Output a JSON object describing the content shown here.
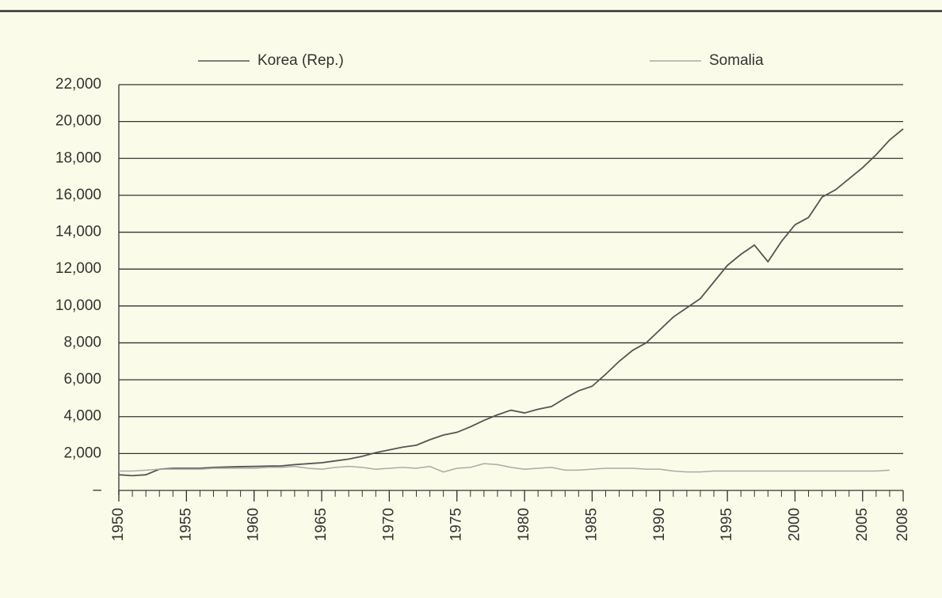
{
  "chart_data": {
    "type": "line",
    "x": [
      1950,
      1951,
      1952,
      1953,
      1954,
      1955,
      1956,
      1957,
      1958,
      1959,
      1960,
      1961,
      1962,
      1963,
      1964,
      1965,
      1966,
      1967,
      1968,
      1969,
      1970,
      1971,
      1972,
      1973,
      1974,
      1975,
      1976,
      1977,
      1978,
      1979,
      1980,
      1981,
      1982,
      1983,
      1984,
      1985,
      1986,
      1987,
      1988,
      1989,
      1990,
      1991,
      1992,
      1993,
      1994,
      1995,
      1996,
      1997,
      1998,
      1999,
      2000,
      2001,
      2002,
      2003,
      2004,
      2005,
      2006,
      2007,
      2008
    ],
    "series": [
      {
        "name": "Korea (Rep.)",
        "color": "#555555",
        "values": [
          850,
          800,
          850,
          1150,
          1200,
          1200,
          1200,
          1250,
          1270,
          1290,
          1300,
          1320,
          1330,
          1400,
          1450,
          1500,
          1600,
          1700,
          1850,
          2050,
          2200,
          2350,
          2450,
          2750,
          3000,
          3150,
          3450,
          3800,
          4100,
          4350,
          4200,
          4400,
          4550,
          5000,
          5400,
          5650,
          6300,
          7000,
          7600,
          8000,
          8700,
          9400,
          9900,
          10400,
          11300,
          12200,
          12800,
          13300,
          12400,
          13500,
          14400,
          14800,
          15900,
          16300,
          16900,
          17500,
          18200,
          19000,
          19600
        ]
      },
      {
        "name": "Somalia",
        "color": "#aaaaaa",
        "values": [
          1050,
          1050,
          1100,
          1150,
          1150,
          1150,
          1150,
          1200,
          1200,
          1200,
          1200,
          1250,
          1250,
          1300,
          1200,
          1150,
          1250,
          1300,
          1250,
          1150,
          1200,
          1250,
          1200,
          1300,
          1000,
          1200,
          1250,
          1450,
          1400,
          1250,
          1150,
          1200,
          1250,
          1100,
          1100,
          1150,
          1200,
          1200,
          1200,
          1150,
          1150,
          1050,
          1000,
          1000,
          1050,
          1050,
          1050,
          1050,
          1050,
          1050,
          1050,
          1050,
          1050,
          1050,
          1050,
          1050,
          1050,
          1100,
          null
        ]
      }
    ],
    "xlim": [
      1950,
      2008
    ],
    "xticks": [
      1950,
      1955,
      1960,
      1965,
      1970,
      1975,
      1980,
      1985,
      1990,
      1995,
      2000,
      2005,
      2008
    ],
    "ylim": [
      0,
      22000
    ],
    "yticks": [
      {
        "value": 0,
        "label": "–"
      },
      {
        "value": 2000,
        "label": "2,000"
      },
      {
        "value": 4000,
        "label": "4,000"
      },
      {
        "value": 6000,
        "label": "6,000"
      },
      {
        "value": 8000,
        "label": "8,000"
      },
      {
        "value": 10000,
        "label": "10,000"
      },
      {
        "value": 12000,
        "label": "12,000"
      },
      {
        "value": 14000,
        "label": "14,000"
      },
      {
        "value": 16000,
        "label": "16,000"
      },
      {
        "value": 18000,
        "label": "18,000"
      },
      {
        "value": 20000,
        "label": "20,000"
      },
      {
        "value": 22000,
        "label": "22,000"
      }
    ],
    "grid": true,
    "legend": "top"
  }
}
